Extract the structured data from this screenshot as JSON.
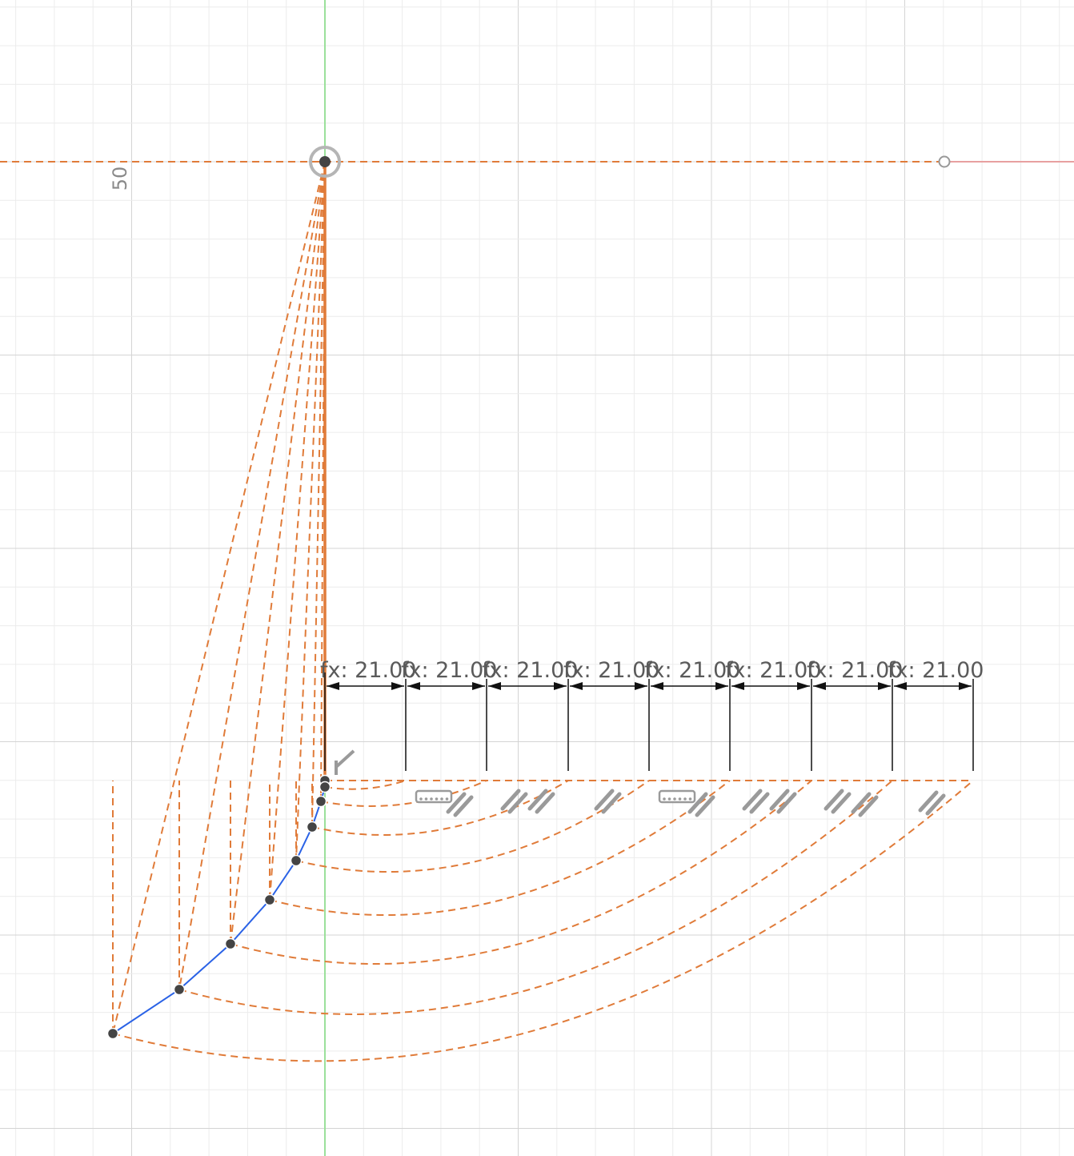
{
  "sketch": {
    "grid_label": "50",
    "dimension_labels": [
      "fx: 21.00",
      "fx: 21.00",
      "fx: 21.00",
      "fx: 21.00",
      "fx: 21.00",
      "fx: 21.00",
      "fx: 21.00",
      "fx: 21.00"
    ],
    "colors": {
      "background": "#ffffff",
      "grid_minor": "#ececec",
      "grid_major": "#d4d4d4",
      "axis_y": "#9be09b",
      "construction": "#e07b39",
      "spline": "#2a62e6",
      "dimension": "#111111",
      "point": "#444444",
      "constraint_icon": "#9a9a9a"
    },
    "icons": [
      "origin-point-icon",
      "fix-constraint-icon",
      "horizontal-constraint-icon",
      "parallel-constraint-icon"
    ]
  }
}
